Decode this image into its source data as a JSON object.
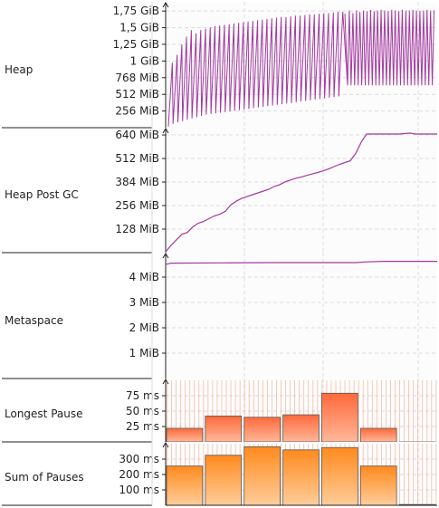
{
  "colors": {
    "purple": "#a23aa0",
    "pause_fill_top": "#ff6a3a",
    "pause_fill_bottom": "#ffb79a",
    "sum_fill_top": "#ff8a1e",
    "sum_fill_bottom": "#ffcd9a",
    "pause_lines": "#f08a5e",
    "grid": "#dcdcdc",
    "panel_bg": "#f9f9f9"
  },
  "chart_data": [
    {
      "type": "line",
      "label": "Heap",
      "yticks": [
        "1,75 GiB",
        "1,5 GiB",
        "1,25 GiB",
        "1 GiB",
        "768 MiB",
        "512 MiB",
        "256 MiB"
      ],
      "ytick_values_mib": [
        1792,
        1536,
        1280,
        1024,
        768,
        512,
        256
      ],
      "ylim_mib": [
        0,
        1850
      ],
      "series": [
        {
          "peaks_mib": [
            1000,
            1120,
            1280,
            1400,
            1500,
            1450,
            1500,
            1520,
            1540,
            1560,
            1570,
            1580,
            1590,
            1600,
            1610,
            1620,
            1630,
            1640,
            1650,
            1660,
            1670,
            1680,
            1690,
            1700,
            1700,
            1710,
            1720,
            1720,
            1730,
            1740,
            1740,
            1750,
            1760,
            1760,
            1770,
            1780,
            1780
          ],
          "troughs_mib": [
            20,
            60,
            80,
            100,
            120,
            140,
            160,
            180,
            200,
            210,
            220,
            230,
            240,
            250,
            260,
            270,
            280,
            290,
            300,
            310,
            320,
            330,
            340,
            350,
            360,
            370,
            380,
            390,
            400,
            410,
            420,
            430,
            440,
            450,
            460,
            470,
            480
          ],
          "late_peak_mib": [
            1800,
            1760,
            1800,
            1780,
            1800,
            1790,
            1810,
            1790,
            1800,
            1810,
            1800,
            1790,
            1810,
            1800,
            1790,
            1810,
            1800,
            1800,
            1810,
            1800,
            1790,
            1800,
            1810,
            1800,
            1800
          ],
          "late_trough_mib": 650
        }
      ]
    },
    {
      "type": "line",
      "label": "Heap Post GC",
      "yticks": [
        "640 MiB",
        "512 MiB",
        "384 MiB",
        "256 MiB",
        "128 MiB"
      ],
      "ytick_values_mib": [
        640,
        512,
        384,
        256,
        128
      ],
      "ylim_mib": [
        0,
        660
      ],
      "series": [
        {
          "x": [
            0,
            0.02,
            0.04,
            0.06,
            0.08,
            0.1,
            0.12,
            0.14,
            0.16,
            0.18,
            0.2,
            0.22,
            0.24,
            0.26,
            0.28,
            0.3,
            0.32,
            0.34,
            0.36,
            0.38,
            0.4,
            0.42,
            0.44,
            0.46,
            0.48,
            0.5,
            0.52,
            0.54,
            0.56,
            0.58,
            0.6,
            0.62,
            0.64,
            0.66,
            0.68,
            0.7,
            0.72,
            0.74,
            0.8,
            0.86,
            0.9,
            0.92,
            1.0
          ],
          "y": [
            5,
            40,
            70,
            100,
            110,
            140,
            160,
            170,
            185,
            200,
            210,
            225,
            260,
            280,
            295,
            305,
            315,
            325,
            335,
            345,
            360,
            370,
            385,
            395,
            405,
            412,
            420,
            428,
            436,
            445,
            455,
            468,
            480,
            490,
            500,
            540,
            600,
            645,
            645,
            645,
            650,
            645,
            645
          ]
        }
      ]
    },
    {
      "type": "line",
      "label": "Metaspace",
      "yticks": [
        "4 MiB",
        "3 MiB",
        "2 MiB",
        "1 MiB"
      ],
      "ytick_values_mib": [
        4,
        3,
        2,
        1
      ],
      "ylim_mib": [
        0,
        4.75
      ],
      "series": [
        {
          "x": [
            0,
            0.02,
            0.2,
            0.4,
            0.6,
            0.7,
            0.74,
            0.8,
            1.0
          ],
          "y": [
            4.5,
            4.55,
            4.56,
            4.57,
            4.57,
            4.57,
            4.6,
            4.62,
            4.62
          ]
        }
      ]
    },
    {
      "type": "bar",
      "label": "Longest Pause",
      "yticks": [
        "75 ms",
        "50 ms",
        "25 ms"
      ],
      "ytick_values_ms": [
        75,
        50,
        25
      ],
      "ylim_ms": [
        0,
        100
      ],
      "values_ms": [
        22,
        42,
        40,
        44,
        79,
        22,
        0
      ]
    },
    {
      "type": "bar",
      "label": "Sum of Pauses",
      "yticks": [
        "300 ms",
        "200 ms",
        "100 ms"
      ],
      "ytick_values_ms": [
        300,
        200,
        100
      ],
      "ylim_ms": [
        0,
        400
      ],
      "values_ms": [
        255,
        325,
        380,
        360,
        375,
        255,
        5
      ]
    }
  ]
}
